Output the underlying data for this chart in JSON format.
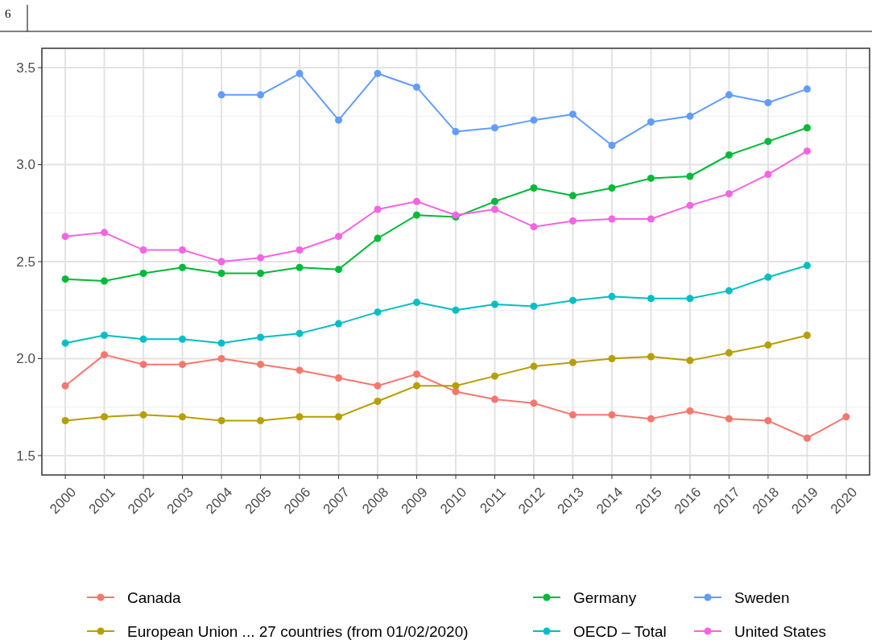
{
  "chart_data": {
    "type": "line",
    "annotations": [
      "6"
    ],
    "categories": [
      "2000",
      "2001",
      "2002",
      "2003",
      "2004",
      "2005",
      "2006",
      "2007",
      "2008",
      "2009",
      "2010",
      "2011",
      "2012",
      "2013",
      "2014",
      "2015",
      "2016",
      "2017",
      "2018",
      "2019",
      "2020"
    ],
    "series": [
      {
        "name": "Canada",
        "color": "#f8766d",
        "values": [
          1.86,
          2.02,
          1.97,
          1.97,
          2.0,
          1.97,
          1.94,
          1.9,
          1.86,
          1.92,
          1.83,
          1.79,
          1.77,
          1.71,
          1.71,
          1.69,
          1.73,
          1.69,
          1.68,
          1.59,
          1.7
        ]
      },
      {
        "name": "European Union ... 27 countries (from 01/02/2020)",
        "color": "#b79f00",
        "values": [
          1.68,
          1.7,
          1.71,
          1.7,
          1.68,
          1.68,
          1.7,
          1.7,
          1.78,
          1.86,
          1.86,
          1.91,
          1.96,
          1.98,
          2.0,
          2.01,
          1.99,
          2.03,
          2.07,
          2.12,
          null
        ]
      },
      {
        "name": "Germany",
        "color": "#00ba38",
        "values": [
          2.41,
          2.4,
          2.44,
          2.47,
          2.44,
          2.44,
          2.47,
          2.46,
          2.62,
          2.74,
          2.73,
          2.81,
          2.88,
          2.84,
          2.88,
          2.93,
          2.94,
          3.05,
          3.12,
          3.19,
          null
        ]
      },
      {
        "name": "OECD – Total",
        "color": "#00bfc4",
        "values": [
          2.08,
          2.12,
          2.1,
          2.1,
          2.08,
          2.11,
          2.13,
          2.18,
          2.24,
          2.29,
          2.25,
          2.28,
          2.27,
          2.3,
          2.32,
          2.31,
          2.31,
          2.35,
          2.42,
          2.48,
          null
        ]
      },
      {
        "name": "Sweden",
        "color": "#619cff",
        "values": [
          null,
          null,
          null,
          null,
          3.36,
          3.36,
          3.47,
          3.23,
          3.47,
          3.4,
          3.17,
          3.19,
          3.23,
          3.26,
          3.1,
          3.22,
          3.25,
          3.36,
          3.32,
          3.39,
          null
        ]
      },
      {
        "name": "United States",
        "color": "#f564e3",
        "values": [
          2.63,
          2.65,
          2.56,
          2.56,
          2.5,
          2.52,
          2.56,
          2.63,
          2.77,
          2.81,
          2.74,
          2.77,
          2.68,
          2.71,
          2.72,
          2.72,
          2.79,
          2.85,
          2.95,
          3.07,
          null
        ]
      }
    ],
    "ylim": [
      1.4,
      3.6
    ],
    "yticks": [
      {
        "value": 1.5,
        "label": "1.5"
      },
      {
        "value": 2,
        "label": "2.0"
      },
      {
        "value": 2.5,
        "label": "2.5"
      },
      {
        "value": 3,
        "label": "3.0"
      },
      {
        "value": 3.5,
        "label": "3.5"
      }
    ],
    "grid": true,
    "legend": "bottom",
    "marker": "circle",
    "line_style": "solid"
  }
}
